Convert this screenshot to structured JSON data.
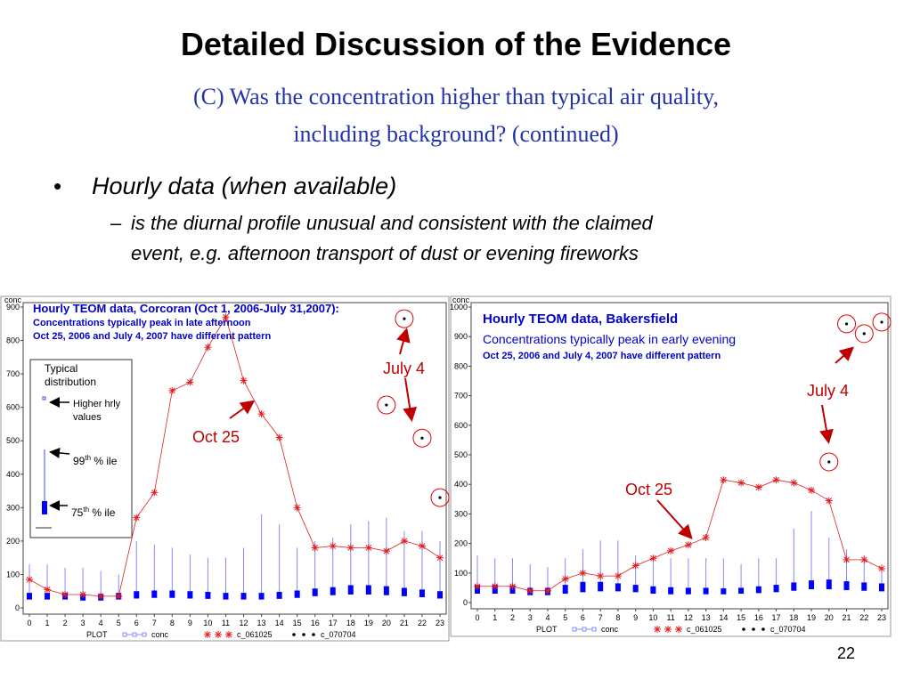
{
  "title": "Detailed Discussion of the Evidence",
  "subtitle_lines": [
    "(C) Was the concentration higher than typical air quality,",
    "including background? (continued)"
  ],
  "bullet": "Hourly data (when available)",
  "sub_bullet_lines": [
    "is the diurnal profile unusual and consistent with the claimed",
    "event, e.g. afternoon transport of dust or evening fireworks"
  ],
  "page_number": "22",
  "chart_data": [
    {
      "type": "box",
      "title": "Hourly TEOM data, Corcoran (Oct 1, 2006-July 31,2007):",
      "subtitle": "Concentrations typically peak in late afternoon",
      "note": "Oct 25, 2006 and July 4, 2007 have different pattern",
      "annotations": [
        "July 4",
        "Oct 25"
      ],
      "y_label": "conc",
      "x_label": "PLOT",
      "inset": {
        "title_lines": [
          "Typical",
          "distribution"
        ],
        "higher_lines": [
          "Higher hrly",
          "values"
        ],
        "p99": {
          "base": "99",
          "sup": "th",
          "rest": " % ile"
        },
        "p75": {
          "base": "75",
          "sup": "th",
          "rest": " % ile"
        }
      },
      "categories": [
        0,
        1,
        2,
        3,
        4,
        5,
        6,
        7,
        8,
        9,
        10,
        11,
        12,
        13,
        14,
        15,
        16,
        17,
        18,
        19,
        20,
        21,
        22,
        23
      ],
      "ylim": [
        0,
        900
      ],
      "yticks": [
        0,
        100,
        200,
        300,
        400,
        500,
        600,
        700,
        800,
        900
      ],
      "box": {
        "name": "conc",
        "color": "#0000ff",
        "q1": [
          25,
          25,
          25,
          22,
          22,
          25,
          28,
          30,
          30,
          28,
          27,
          25,
          25,
          25,
          27,
          30,
          35,
          38,
          40,
          40,
          38,
          35,
          32,
          28
        ],
        "q3": [
          45,
          45,
          45,
          42,
          42,
          45,
          50,
          52,
          52,
          50,
          48,
          45,
          45,
          45,
          48,
          52,
          58,
          62,
          68,
          68,
          65,
          60,
          55,
          50
        ],
        "whisker": [
          130,
          130,
          120,
          120,
          110,
          100,
          200,
          190,
          180,
          160,
          150,
          150,
          180,
          280,
          250,
          180,
          200,
          210,
          250,
          260,
          270,
          230,
          230,
          200
        ]
      },
      "series": [
        {
          "name": "c_061025",
          "color": "#e02020",
          "values": [
            85,
            55,
            40,
            40,
            35,
            35,
            270,
            345,
            650,
            675,
            780,
            870,
            680,
            580,
            510,
            300,
            180,
            185,
            180,
            180,
            170,
            200,
            185,
            150
          ]
        },
        {
          "name": "c_070704",
          "color": "#000000",
          "values": [
            null,
            null,
            null,
            null,
            null,
            null,
            null,
            null,
            null,
            null,
            null,
            null,
            null,
            null,
            null,
            null,
            null,
            null,
            null,
            null,
            607,
            865,
            508,
            330
          ]
        }
      ]
    },
    {
      "type": "box",
      "title": "Hourly TEOM data, Bakersfield",
      "subtitle": "Concentrations typically peak in early evening",
      "note": "Oct 25, 2006 and July 4, 2007 have different pattern",
      "annotations": [
        "July 4",
        "Oct 25"
      ],
      "y_label": "conc",
      "x_label": "PLOT",
      "categories": [
        0,
        1,
        2,
        3,
        4,
        5,
        6,
        7,
        8,
        9,
        10,
        11,
        12,
        13,
        14,
        15,
        16,
        17,
        18,
        19,
        20,
        21,
        22,
        23
      ],
      "ylim": [
        0,
        1000
      ],
      "yticks": [
        0,
        100,
        200,
        300,
        400,
        500,
        600,
        700,
        800,
        900,
        1000
      ],
      "box": {
        "name": "conc",
        "color": "#0000ff",
        "q1": [
          30,
          30,
          30,
          25,
          25,
          30,
          35,
          38,
          38,
          35,
          30,
          28,
          28,
          28,
          28,
          30,
          32,
          35,
          40,
          45,
          45,
          42,
          40,
          38
        ],
        "q3": [
          60,
          60,
          58,
          50,
          50,
          60,
          70,
          70,
          65,
          60,
          55,
          52,
          50,
          50,
          48,
          50,
          55,
          60,
          68,
          75,
          78,
          72,
          68,
          65
        ],
        "whisker": [
          160,
          150,
          150,
          130,
          120,
          150,
          180,
          210,
          210,
          160,
          150,
          150,
          150,
          150,
          150,
          130,
          150,
          150,
          250,
          310,
          220,
          180,
          160,
          130
        ]
      },
      "series": [
        {
          "name": "c_061025",
          "color": "#e02020",
          "values": [
            55,
            55,
            55,
            40,
            40,
            80,
            100,
            90,
            90,
            125,
            150,
            175,
            195,
            220,
            415,
            405,
            390,
            415,
            405,
            380,
            345,
            145,
            145,
            115
          ]
        },
        {
          "name": "c_070704",
          "color": "#000000",
          "values": [
            null,
            null,
            null,
            null,
            null,
            null,
            null,
            null,
            null,
            null,
            null,
            null,
            null,
            null,
            null,
            null,
            null,
            null,
            null,
            null,
            476,
            943,
            910,
            949
          ]
        }
      ]
    }
  ]
}
